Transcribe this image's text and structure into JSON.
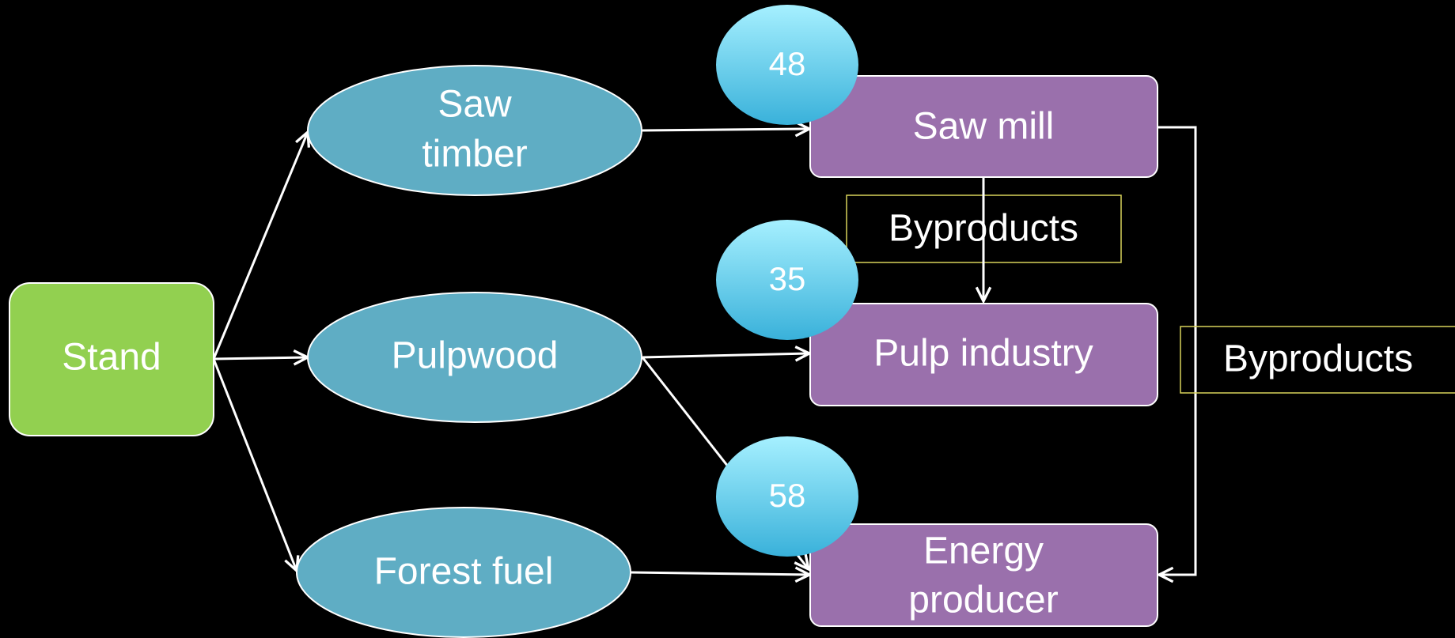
{
  "nodes": [
    {
      "label": [
        "Stand"
      ]
    },
    {
      "label": [
        "Saw",
        "timber"
      ]
    },
    {
      "label": [
        "Pulpwood"
      ]
    },
    {
      "label": [
        "Forest fuel"
      ]
    },
    {
      "label": [
        "Saw mill"
      ]
    },
    {
      "label": [
        "Pulp industry"
      ]
    },
    {
      "label": [
        "Energy",
        "producer"
      ]
    }
  ],
  "badges": [
    "48",
    "35",
    "58"
  ],
  "byproducts": [
    "Byproducts",
    "Byproducts"
  ]
}
